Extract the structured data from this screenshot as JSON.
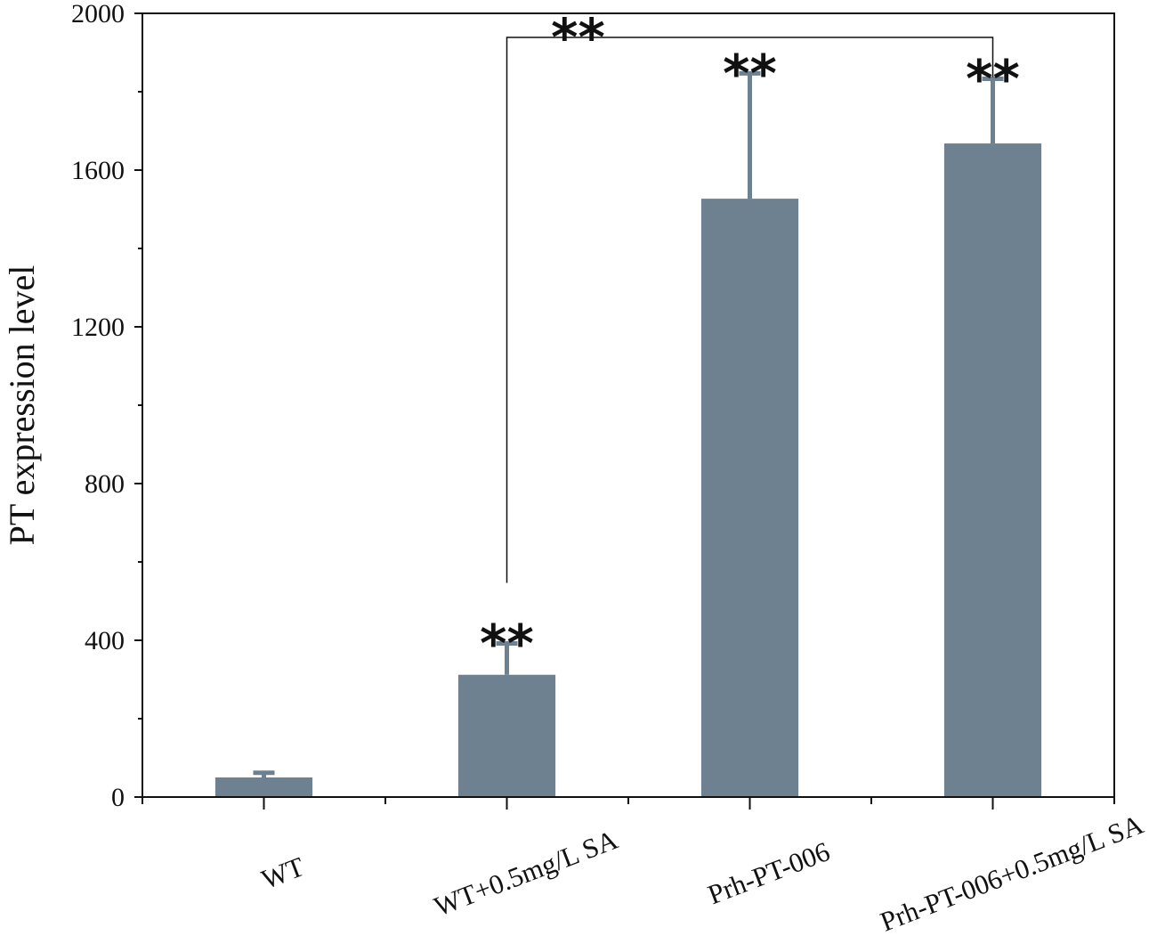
{
  "chart_data": {
    "type": "bar",
    "ylabel": "PT expression level",
    "xlabel": "",
    "ylim": [
      0,
      2000
    ],
    "yticks": [
      0,
      400,
      800,
      1200,
      1600,
      2000
    ],
    "categories": [
      "WT",
      "WT+0.5mg/L SA",
      "Prh-PT-006",
      "Prh-PT-006+0.5mg/L SA"
    ],
    "values": [
      50,
      312,
      1527,
      1668
    ],
    "errors": [
      12,
      80,
      320,
      165
    ],
    "significance": [
      "",
      "**",
      "**",
      "**"
    ],
    "comparison": {
      "from": 1,
      "to": 3,
      "label": "**"
    },
    "bar_color": "#6e8190",
    "grid": false
  }
}
